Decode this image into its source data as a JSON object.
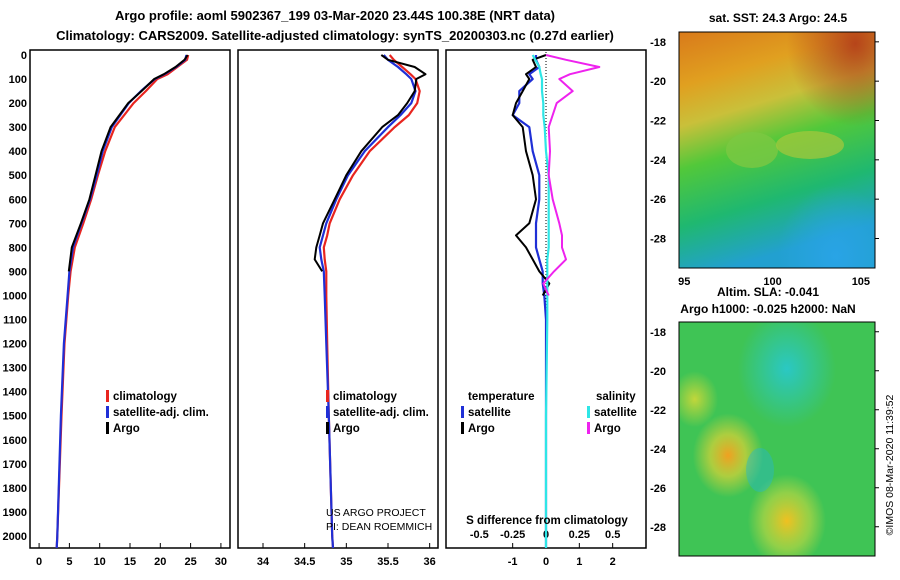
{
  "header": {
    "line1": "Argo profile: aoml 5902367_199 03-Mar-2020 23.44S 100.38E (NRT data)",
    "line2": "Climatology: CARS2009. Satellite-adjusted climatology: synTS_20200303.nc (0.27d earlier)"
  },
  "colors": {
    "climatology": "#e8251f",
    "satellite_adj": "#1f2fd6",
    "argo": "#000000",
    "sat_salinity": "#2ee6e6",
    "argo_salinity": "#ee22ee"
  },
  "depth_axis": {
    "ticks": [
      "0",
      "100",
      "200",
      "300",
      "400",
      "500",
      "600",
      "700",
      "800",
      "900",
      "1000",
      "1100",
      "1200",
      "1300",
      "1400",
      "1500",
      "1600",
      "1700",
      "1800",
      "1900",
      "2000"
    ],
    "range": [
      0,
      2050
    ]
  },
  "chart_data": [
    {
      "type": "line",
      "name": "temperature-profile",
      "xlabel": "",
      "ylabel": "",
      "xlim": [
        -1.5,
        31.5
      ],
      "ylim": [
        2050,
        0
      ],
      "xticks": [
        "0",
        "5",
        "10",
        "15",
        "20",
        "25",
        "30"
      ],
      "legend": [
        "climatology",
        "satellite-adj. clim.",
        "Argo"
      ],
      "depth": [
        0,
        20,
        50,
        80,
        100,
        150,
        200,
        300,
        400,
        500,
        600,
        700,
        800,
        900,
        1000,
        1200,
        1500,
        2000,
        2050
      ],
      "series": [
        {
          "name": "climatology",
          "values": [
            24.6,
            24.4,
            22.8,
            21.2,
            19.5,
            17.6,
            15.6,
            12.5,
            10.9,
            9.7,
            8.6,
            7.3,
            5.9,
            5.2,
            4.8,
            4.2,
            3.7,
            3.0,
            2.9
          ]
        },
        {
          "name": "satellite-adj. clim.",
          "values": [
            24.3,
            24.1,
            22.6,
            20.7,
            19.1,
            16.8,
            14.8,
            12.0,
            10.5,
            9.5,
            8.4,
            7.0,
            5.6,
            5.0,
            4.7,
            4.1,
            3.6,
            3.0,
            2.9
          ]
        },
        {
          "name": "Argo",
          "values": [
            24.5,
            24.0,
            22.5,
            20.6,
            19.0,
            16.9,
            14.7,
            11.8,
            10.3,
            9.3,
            8.3,
            6.9,
            5.4,
            4.9
          ]
        }
      ]
    },
    {
      "type": "line",
      "name": "salinity-profile",
      "xlabel": "",
      "ylabel": "",
      "xlim": [
        33.7,
        36.1
      ],
      "ylim": [
        2050,
        0
      ],
      "xticks": [
        "34",
        "34.5",
        "35",
        "35.5",
        "36"
      ],
      "legend": [
        "climatology",
        "satellite-adj. clim.",
        "Argo"
      ],
      "depth": [
        0,
        20,
        50,
        80,
        100,
        150,
        200,
        250,
        300,
        400,
        500,
        600,
        700,
        750,
        800,
        850,
        900,
        1000,
        1200,
        1500,
        2000,
        2050
      ],
      "series": [
        {
          "name": "climatology",
          "values": [
            35.52,
            35.57,
            35.67,
            35.77,
            35.83,
            35.88,
            35.85,
            35.75,
            35.58,
            35.28,
            35.08,
            34.92,
            34.8,
            34.77,
            34.73,
            34.74,
            34.76,
            34.76,
            34.77,
            34.79,
            34.83,
            34.84
          ]
        },
        {
          "name": "satellite-adj. clim.",
          "values": [
            35.45,
            35.5,
            35.62,
            35.72,
            35.78,
            35.83,
            35.78,
            35.65,
            35.5,
            35.22,
            35.02,
            34.88,
            34.76,
            34.72,
            34.68,
            34.7,
            34.73,
            34.74,
            34.76,
            34.79,
            34.83,
            34.84
          ]
        },
        {
          "name": "Argo",
          "values": [
            35.42,
            35.5,
            35.82,
            35.95,
            35.84,
            35.82,
            35.73,
            35.62,
            35.43,
            35.18,
            35.0,
            34.86,
            34.72,
            34.68,
            34.64,
            34.62,
            34.71
          ]
        }
      ]
    },
    {
      "type": "line",
      "name": "difference-from-climatology",
      "title": "S difference from climatology",
      "xlim": [
        -3.0,
        3.0
      ],
      "ylim": [
        2050,
        0
      ],
      "xticks": [
        "-1",
        "0",
        "1",
        "2"
      ],
      "top_xticks": [
        "-0.5",
        "-0.25",
        "0",
        "0.25",
        "0.5"
      ],
      "legend_groups": [
        {
          "title": "temperature",
          "items": [
            "satellite",
            "Argo"
          ]
        },
        {
          "title": "salinity",
          "items": [
            "satellite",
            "Argo"
          ]
        }
      ],
      "depth": [
        0,
        20,
        50,
        80,
        100,
        150,
        200,
        250,
        300,
        400,
        500,
        600,
        700,
        750,
        800,
        850,
        900,
        950,
        1000,
        1100,
        1500,
        2000,
        2050
      ],
      "series": [
        {
          "name": "temperature satellite",
          "values": [
            -0.3,
            -0.3,
            -0.2,
            -0.5,
            -0.4,
            -0.8,
            -0.8,
            -1.0,
            -0.5,
            -0.4,
            -0.2,
            -0.2,
            -0.3,
            -0.3,
            -0.3,
            -0.2,
            -0.1,
            -0.1,
            -0.05,
            0.0,
            0.0,
            0.0,
            0.0
          ]
        },
        {
          "name": "temperature Argo",
          "values": [
            0.0,
            -0.4,
            -0.3,
            -0.6,
            -0.5,
            -0.7,
            -0.9,
            -1.0,
            -0.7,
            -0.6,
            -0.4,
            -0.3,
            -0.5,
            -0.9,
            -0.6,
            -0.4,
            -0.2,
            0.1,
            -0.1
          ]
        },
        {
          "name": "salinity satellite",
          "values": [
            -0.1,
            -0.08,
            -0.05,
            -0.04,
            -0.03,
            -0.03,
            -0.02,
            -0.02,
            -0.01,
            0.0,
            0.02,
            0.02,
            0.02,
            0.02,
            0.02,
            0.01,
            0.01,
            0.01,
            0.01,
            0.01,
            0.0,
            0.0,
            0.0
          ]
        },
        {
          "name": "salinity Argo",
          "values": [
            0.0,
            0.15,
            0.4,
            0.18,
            0.1,
            0.2,
            0.08,
            0.05,
            0.02,
            0.03,
            0.02,
            0.05,
            0.1,
            0.12,
            0.12,
            0.15,
            0.06,
            -0.02,
            0.02
          ]
        }
      ]
    }
  ],
  "sst_map": {
    "title": "sat. SST: 24.3 Argo: 24.5",
    "lat_ticks": [
      "-18",
      "-20",
      "-22",
      "-24",
      "-26",
      "-28"
    ],
    "lon_ticks": [
      "95",
      "100",
      "105"
    ]
  },
  "sla_map": {
    "title_line1": "Altim. SLA: -0.041",
    "title_line2": "Argo h1000: -0.025 h2000: NaN",
    "lat_ticks": [
      "-18",
      "-20",
      "-22",
      "-24",
      "-26",
      "-28"
    ]
  },
  "credits": {
    "project": "US ARGO PROJECT",
    "pi": "PI: DEAN ROEMMICH",
    "stamp": "©IMOS 08-Mar-2020 11:39:52"
  }
}
